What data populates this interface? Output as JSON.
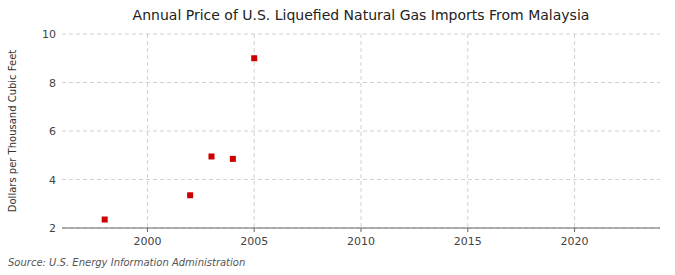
{
  "chart_data": {
    "type": "scatter",
    "title": "Annual Price of U.S. Liquefied Natural Gas Imports From Malaysia",
    "ylabel": "Dollars per Thousand Cubic Feet",
    "source": "Source: U.S. Energy Information Administration",
    "x": [
      1998,
      2002,
      2003,
      2004,
      2005
    ],
    "values": [
      2.35,
      3.35,
      4.95,
      4.85,
      9.0
    ],
    "color": "#cc0000",
    "marker": "square",
    "xlim": [
      1996,
      2024
    ],
    "ylim": [
      2,
      10
    ],
    "xticks": [
      2000,
      2005,
      2010,
      2015,
      2020
    ],
    "yticks": [
      2,
      4,
      6,
      8,
      10
    ],
    "grid": true
  }
}
